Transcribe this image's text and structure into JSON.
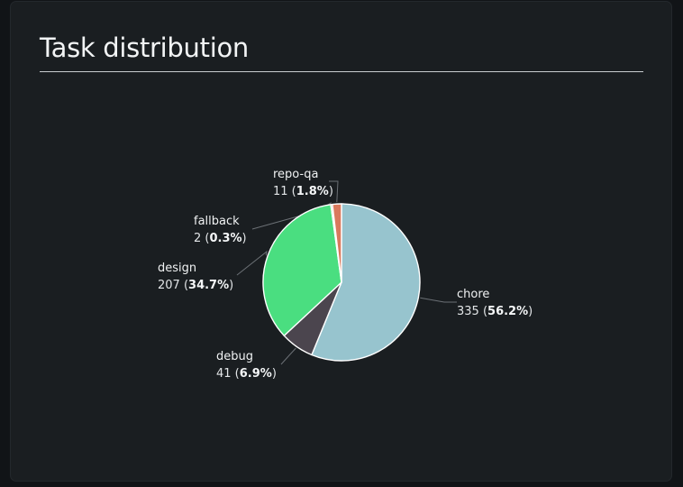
{
  "header": {
    "title": "Task distribution"
  },
  "colors": {
    "background": "#1a1e21",
    "page": "#111417",
    "leader": "#6b7075",
    "slice_border": "#ffffff"
  },
  "chart_data": {
    "type": "pie",
    "title": "Task distribution",
    "start_angle_deg": 0,
    "direction": "clockwise",
    "slices": [
      {
        "name": "chore",
        "value": 335,
        "percent": "56.2%",
        "color": "#97c4ce"
      },
      {
        "name": "debug",
        "value": 41,
        "percent": "6.9%",
        "color": "#4b454e"
      },
      {
        "name": "design",
        "value": 207,
        "percent": "34.7%",
        "color": "#4ade80"
      },
      {
        "name": "fallback",
        "value": 2,
        "percent": "0.3%",
        "color": "#c9a07a"
      },
      {
        "name": "repo-qa",
        "value": 11,
        "percent": "1.8%",
        "color": "#d9795d"
      }
    ]
  }
}
